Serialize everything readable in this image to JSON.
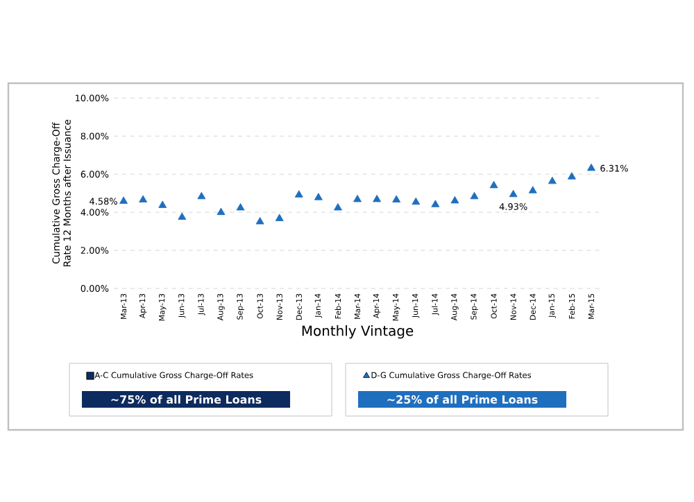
{
  "chart_data": {
    "type": "scatter",
    "ylabel": "Cumulative Gross Charge-Off Rate 12 Months after Issuance",
    "xlabel": "Monthly Vintage",
    "categories": [
      "Mar-13",
      "Apr-13",
      "May-13",
      "Jun-13",
      "Jul-13",
      "Aug-13",
      "Sep-13",
      "Oct-13",
      "Nov-13",
      "Dec-13",
      "Jan-14",
      "Feb-14",
      "Mar-14",
      "Apr-14",
      "May-14",
      "Jun-14",
      "Jul-14",
      "Aug-14",
      "Sep-14",
      "Oct-14",
      "Nov-14",
      "Dec-14",
      "Jan-15",
      "Feb-15",
      "Mar-15"
    ],
    "series": [
      {
        "name": "A-C Cumulative Gross Charge-Off Rates",
        "color": "#0d2b5e",
        "marker": "square",
        "values": [
          null,
          null,
          null,
          null,
          null,
          null,
          null,
          null,
          null,
          null,
          null,
          null,
          null,
          null,
          null,
          null,
          null,
          null,
          null,
          null,
          null,
          null,
          null,
          null,
          null
        ]
      },
      {
        "name": "D-G Cumulative Gross Charge-Off Rates",
        "color": "#1f6fbf",
        "marker": "triangle",
        "values": [
          4.58,
          4.65,
          4.36,
          3.74,
          4.82,
          3.99,
          4.23,
          3.5,
          3.67,
          4.91,
          4.77,
          4.23,
          4.67,
          4.67,
          4.65,
          4.53,
          4.4,
          4.6,
          4.82,
          5.4,
          4.93,
          5.13,
          5.62,
          5.86,
          6.31
        ],
        "value_labels": [
          "4.58%",
          null,
          null,
          null,
          null,
          null,
          null,
          null,
          null,
          null,
          null,
          null,
          null,
          null,
          null,
          null,
          null,
          null,
          null,
          null,
          "4.93%",
          null,
          null,
          null,
          "6.31%"
        ]
      }
    ],
    "ylim": [
      0,
      10
    ],
    "yticks": [
      {
        "value": 0,
        "label": "0.00%"
      },
      {
        "value": 2,
        "label": "2.00%"
      },
      {
        "value": 4,
        "label": "4.00%"
      },
      {
        "value": 6,
        "label": "6.00%"
      },
      {
        "value": 8,
        "label": "8.00%"
      },
      {
        "value": 10,
        "label": "10.00%"
      }
    ],
    "grid": "y",
    "legend": "bottom",
    "annotations": [
      "~75% of all Prime Loans",
      "~25% of all Prime Loans"
    ]
  }
}
